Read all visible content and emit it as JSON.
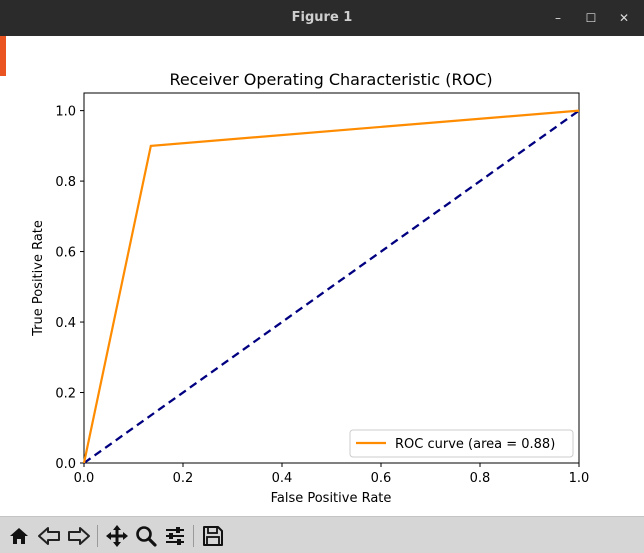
{
  "window": {
    "title": "Figure 1",
    "minimize_glyph": "–",
    "maximize_glyph": "☐",
    "close_glyph": "✕"
  },
  "toolbar": {
    "buttons": [
      {
        "name": "home-icon"
      },
      {
        "name": "back-arrow-icon"
      },
      {
        "name": "forward-arrow-icon"
      },
      {
        "name": "pan-move-icon"
      },
      {
        "name": "zoom-magnifier-icon"
      },
      {
        "name": "configure-subplots-icon"
      },
      {
        "name": "save-floppy-icon"
      }
    ]
  },
  "colors": {
    "roc_line": "#ff8c00",
    "diagonal": "#000080",
    "titlebar": "#2b2b2b",
    "toolbar": "#d6d6d6"
  },
  "chart_data": {
    "type": "line",
    "title": "Receiver Operating Characteristic (ROC)",
    "xlabel": "False Positive Rate",
    "ylabel": "True Positive Rate",
    "xlim": [
      0.0,
      1.0
    ],
    "ylim": [
      0.0,
      1.05
    ],
    "xticks": [
      0.0,
      0.2,
      0.4,
      0.6,
      0.8,
      1.0
    ],
    "yticks": [
      0.0,
      0.2,
      0.4,
      0.6,
      0.8,
      1.0
    ],
    "xtick_labels": [
      "0.0",
      "0.2",
      "0.4",
      "0.6",
      "0.8",
      "1.0"
    ],
    "ytick_labels": [
      "0.0",
      "0.2",
      "0.4",
      "0.6",
      "0.8",
      "1.0"
    ],
    "grid": false,
    "legend_position": "lower-right",
    "series": [
      {
        "name": "ROC curve (area = 0.88)",
        "style": "solid",
        "color": "#ff8c00",
        "x": [
          0.0,
          0.135,
          1.0
        ],
        "y": [
          0.0,
          0.9,
          1.0
        ]
      },
      {
        "style": "dashed",
        "color": "#000080",
        "x": [
          0.0,
          1.0
        ],
        "y": [
          0.0,
          1.0
        ]
      }
    ]
  }
}
